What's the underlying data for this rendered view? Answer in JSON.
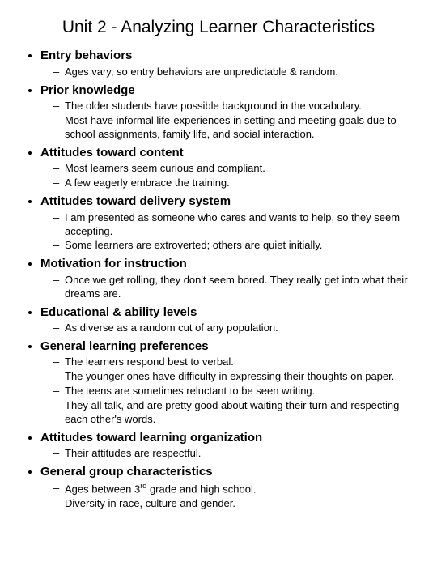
{
  "title": "Unit 2 - Analyzing Learner Characteristics",
  "sections": [
    {
      "heading": "Entry behaviors",
      "items": [
        "Ages vary, so entry behaviors are unpredictable & random."
      ]
    },
    {
      "heading": "Prior knowledge",
      "items": [
        "The older students have possible background in the vocabulary.",
        "Most have informal life-experiences in setting and meeting goals due to school assignments, family life, and social interaction."
      ]
    },
    {
      "heading": "Attitudes toward content",
      "items": [
        "Most learners seem curious and compliant.",
        "A few eagerly embrace the training."
      ]
    },
    {
      "heading": "Attitudes toward delivery system",
      "items": [
        "I am presented as someone who cares and wants to help, so they seem accepting.",
        "Some learners are extroverted; others are quiet initially."
      ]
    },
    {
      "heading": "Motivation for instruction",
      "items": [
        "Once we get rolling, they don't seem bored.     They really get into what their dreams are."
      ]
    },
    {
      "heading": "Educational & ability levels",
      "items": [
        "As diverse as a random cut of any population."
      ]
    },
    {
      "heading": "General learning preferences",
      "items": [
        "The learners respond best to verbal.",
        "The younger ones have difficulty in expressing their thoughts on paper.",
        "The teens are sometimes reluctant to be seen writing.",
        "They all talk, and are pretty good about waiting their turn and respecting each other's words."
      ]
    },
    {
      "heading": "Attitudes toward learning organization",
      "items": [
        "Their attitudes are respectful."
      ]
    },
    {
      "heading": "General group characteristics",
      "items": [
        "Ages between 3rd grade and high school.",
        "Diversity in race, culture and gender."
      ]
    }
  ],
  "colors": {
    "text": "#000000",
    "background": "#ffffff"
  },
  "typography": {
    "title_fontsize": 21,
    "heading_fontsize": 15,
    "body_fontsize": 13,
    "font_family": "Arial"
  }
}
